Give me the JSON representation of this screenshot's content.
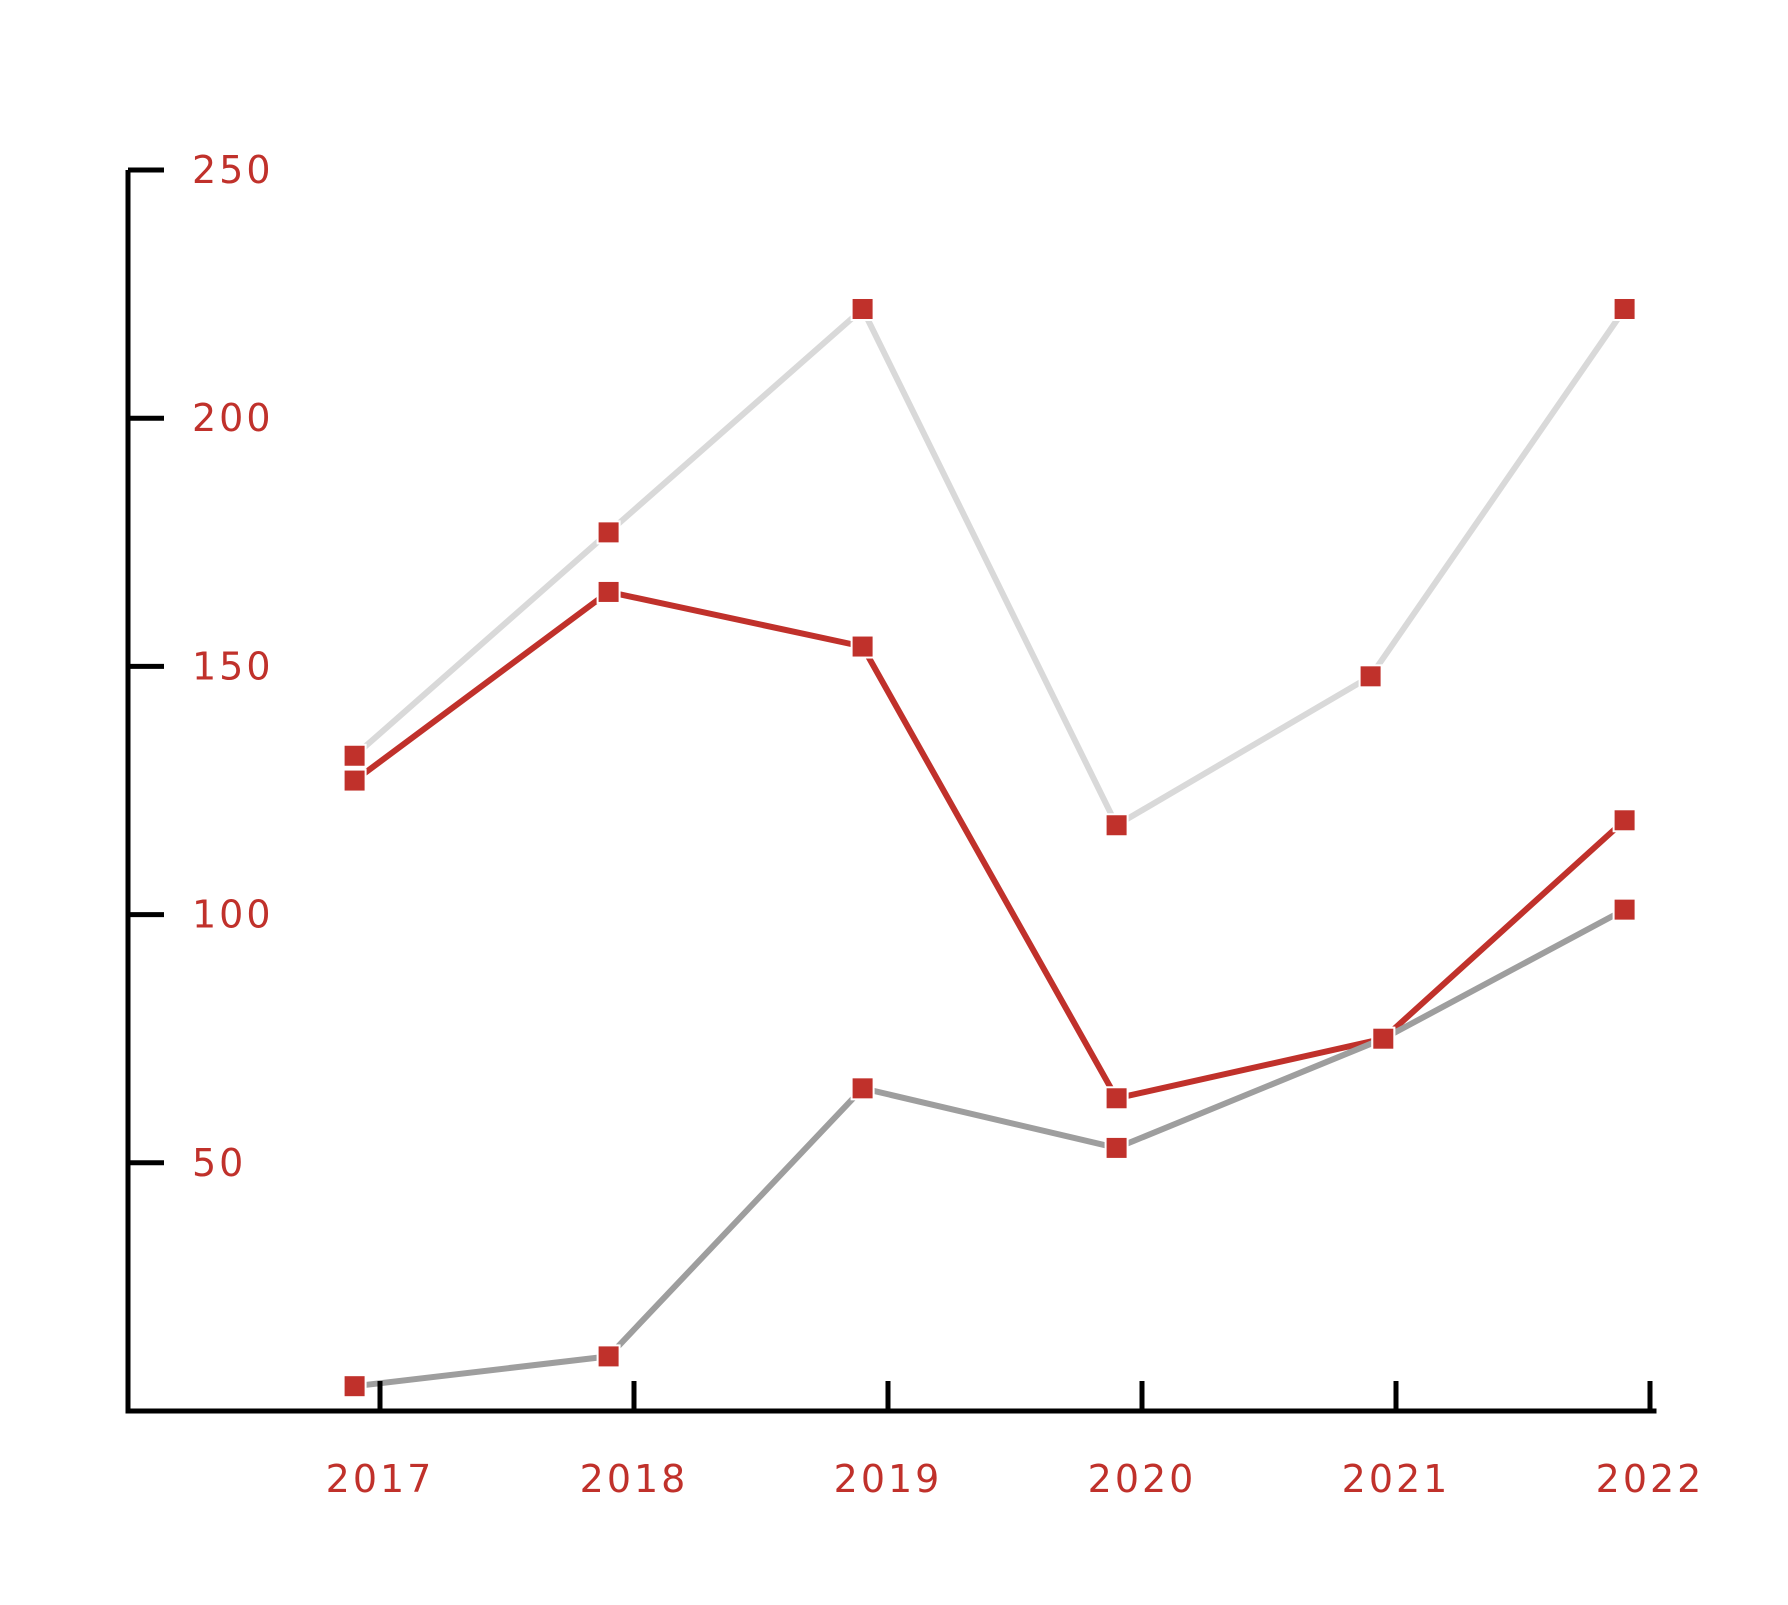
{
  "chart_data": {
    "type": "line",
    "title": "",
    "xlabel": "",
    "ylabel": "",
    "x_tick_labels": [
      "2017",
      "2018",
      "2019",
      "2020",
      "2021",
      "2022"
    ],
    "y_tick_labels": [
      "50",
      "100",
      "150",
      "200",
      "250"
    ],
    "y_ticks": [
      50,
      100,
      150,
      200,
      250
    ],
    "ylim": [
      0,
      250
    ],
    "grid": false,
    "series": [
      {
        "color": "#d9d9d9",
        "marker_color": "#c0312b",
        "points": [
          {
            "x": 2016.9,
            "y": 132
          },
          {
            "x": 2017.9,
            "y": 177
          },
          {
            "x": 2018.9,
            "y": 222
          },
          {
            "x": 2019.9,
            "y": 118
          },
          {
            "x": 2020.9,
            "y": 148
          },
          {
            "x": 2021.9,
            "y": 222
          }
        ]
      },
      {
        "color": "#c0312b",
        "marker_color": "#c0312b",
        "points": [
          {
            "x": 2016.9,
            "y": 127
          },
          {
            "x": 2017.9,
            "y": 165
          },
          {
            "x": 2018.9,
            "y": 154
          },
          {
            "x": 2019.9,
            "y": 63
          },
          {
            "x": 2020.95,
            "y": 75
          },
          {
            "x": 2021.9,
            "y": 119
          }
        ]
      },
      {
        "color": "#9e9e9e",
        "marker_color": "#c0312b",
        "points": [
          {
            "x": 2016.9,
            "y": 5
          },
          {
            "x": 2017.9,
            "y": 11
          },
          {
            "x": 2018.9,
            "y": 65
          },
          {
            "x": 2019.9,
            "y": 53
          },
          {
            "x": 2020.95,
            "y": 75
          },
          {
            "x": 2021.9,
            "y": 101
          }
        ]
      }
    ],
    "colors": {
      "axis": "#000000",
      "tick_label": "#c0312b",
      "marker": "#c0312b"
    }
  }
}
